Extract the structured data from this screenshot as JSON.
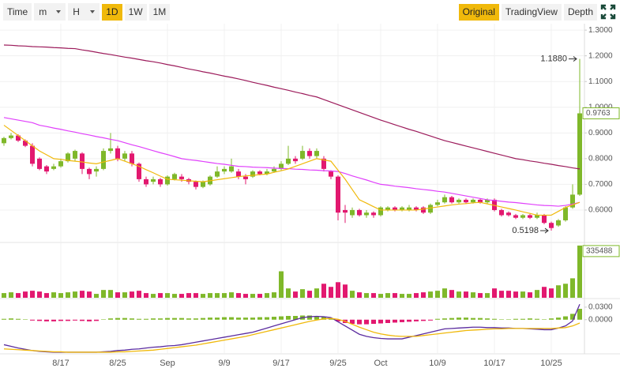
{
  "toolbar": {
    "interval": "Time",
    "dropdowns": [
      "m",
      "H"
    ],
    "periods": [
      "1D",
      "1W",
      "1M"
    ],
    "active_period": "1D",
    "views": [
      "Original",
      "TradingView",
      "Depth"
    ],
    "active_view": "Original"
  },
  "chart_data": [
    {
      "type": "candlestick",
      "categories": [
        null,
        null,
        null,
        null,
        null,
        null,
        null,
        null,
        "8/17",
        null,
        null,
        null,
        null,
        null,
        null,
        null,
        "8/25",
        null,
        null,
        null,
        null,
        null,
        null,
        "Sep",
        null,
        null,
        null,
        null,
        null,
        null,
        null,
        "9/9",
        null,
        null,
        null,
        null,
        null,
        null,
        null,
        "9/17",
        null,
        null,
        null,
        null,
        null,
        null,
        null,
        "9/25",
        null,
        null,
        null,
        null,
        null,
        "Oct",
        null,
        null,
        null,
        null,
        null,
        null,
        null,
        "10/9",
        null,
        null,
        null,
        null,
        null,
        null,
        null,
        "10/17",
        null,
        null,
        null,
        null,
        null,
        null,
        null,
        "10/25",
        null,
        null,
        null,
        null
      ],
      "open": [
        0.86,
        0.88,
        0.89,
        0.87,
        0.85,
        0.8,
        0.77,
        0.76,
        0.77,
        0.79,
        0.8,
        0.82,
        0.76,
        0.75,
        0.76,
        0.83,
        0.84,
        0.8,
        0.82,
        0.78,
        0.72,
        0.71,
        0.72,
        0.7,
        0.72,
        0.73,
        0.72,
        0.71,
        0.69,
        0.7,
        0.73,
        0.75,
        0.75,
        0.75,
        0.73,
        0.73,
        0.75,
        0.74,
        0.75,
        0.76,
        0.78,
        0.8,
        0.8,
        0.83,
        0.81,
        0.8,
        0.75,
        0.73,
        0.6,
        0.58,
        0.6,
        0.58,
        0.59,
        0.58,
        0.6,
        0.61,
        0.6,
        0.6,
        0.61,
        0.61,
        0.59,
        0.62,
        0.63,
        0.65,
        0.63,
        0.64,
        0.63,
        0.64,
        0.63,
        0.64,
        0.6,
        0.59,
        0.58,
        0.57,
        0.58,
        0.57,
        0.58,
        0.55,
        0.54,
        0.56,
        0.61,
        0.66
      ],
      "high": [
        0.885,
        0.9,
        0.895,
        0.875,
        0.86,
        0.805,
        0.775,
        0.78,
        0.8,
        0.825,
        0.835,
        0.825,
        0.765,
        0.77,
        0.84,
        0.9,
        0.85,
        0.83,
        0.83,
        0.785,
        0.73,
        0.73,
        0.725,
        0.735,
        0.745,
        0.74,
        0.725,
        0.715,
        0.715,
        0.735,
        0.77,
        0.77,
        0.8,
        0.76,
        0.74,
        0.755,
        0.755,
        0.76,
        0.77,
        0.79,
        0.85,
        0.81,
        0.85,
        0.84,
        0.84,
        0.81,
        0.755,
        0.735,
        0.62,
        0.61,
        0.605,
        0.6,
        0.595,
        0.615,
        0.615,
        0.615,
        0.615,
        0.62,
        0.615,
        0.615,
        0.625,
        0.64,
        0.66,
        0.655,
        0.645,
        0.645,
        0.645,
        0.645,
        0.645,
        0.645,
        0.605,
        0.595,
        0.585,
        0.585,
        0.585,
        0.59,
        0.585,
        0.555,
        0.565,
        0.615,
        0.7,
        1.188
      ],
      "low": [
        0.85,
        0.875,
        0.865,
        0.845,
        0.77,
        0.755,
        0.74,
        0.755,
        0.765,
        0.785,
        0.79,
        0.74,
        0.72,
        0.73,
        0.755,
        0.82,
        0.79,
        0.79,
        0.77,
        0.71,
        0.69,
        0.7,
        0.69,
        0.695,
        0.715,
        0.71,
        0.7,
        0.68,
        0.685,
        0.695,
        0.725,
        0.74,
        0.745,
        0.72,
        0.7,
        0.725,
        0.735,
        0.735,
        0.745,
        0.755,
        0.775,
        0.78,
        0.795,
        0.8,
        0.8,
        0.75,
        0.72,
        0.56,
        0.55,
        0.57,
        0.575,
        0.57,
        0.57,
        0.575,
        0.595,
        0.595,
        0.595,
        0.595,
        0.595,
        0.585,
        0.585,
        0.615,
        0.625,
        0.625,
        0.625,
        0.625,
        0.625,
        0.625,
        0.625,
        0.595,
        0.575,
        0.575,
        0.565,
        0.565,
        0.565,
        0.565,
        0.545,
        0.5198,
        0.535,
        0.555,
        0.605,
        0.655
      ],
      "close": [
        0.88,
        0.89,
        0.87,
        0.85,
        0.78,
        0.76,
        0.75,
        0.77,
        0.79,
        0.82,
        0.83,
        0.76,
        0.74,
        0.76,
        0.83,
        0.84,
        0.8,
        0.82,
        0.78,
        0.72,
        0.7,
        0.72,
        0.7,
        0.73,
        0.74,
        0.72,
        0.71,
        0.69,
        0.71,
        0.73,
        0.75,
        0.76,
        0.77,
        0.73,
        0.72,
        0.75,
        0.74,
        0.75,
        0.76,
        0.78,
        0.8,
        0.79,
        0.83,
        0.81,
        0.83,
        0.76,
        0.73,
        0.59,
        0.59,
        0.6,
        0.58,
        0.59,
        0.58,
        0.61,
        0.61,
        0.6,
        0.61,
        0.61,
        0.6,
        0.59,
        0.62,
        0.63,
        0.65,
        0.63,
        0.64,
        0.63,
        0.64,
        0.63,
        0.64,
        0.6,
        0.58,
        0.58,
        0.57,
        0.58,
        0.57,
        0.58,
        0.55,
        0.53,
        0.56,
        0.61,
        0.66,
        0.9763
      ],
      "up_color": "#7fb82a",
      "down_color": "#e2186f",
      "lines": [
        {
          "color": "#9c1b5b",
          "values": [
            1.242,
            1.241,
            1.239,
            1.238,
            1.236,
            1.235,
            1.234,
            1.232,
            1.231,
            1.229,
            1.228,
            1.223,
            1.219,
            1.214,
            1.209,
            1.205,
            1.2,
            1.195,
            1.191,
            1.186,
            1.181,
            1.177,
            1.172,
            1.166,
            1.161,
            1.155,
            1.149,
            1.144,
            1.138,
            1.133,
            1.127,
            1.121,
            1.116,
            1.11,
            1.104,
            1.097,
            1.091,
            1.085,
            1.078,
            1.072,
            1.066,
            1.059,
            1.053,
            1.046,
            1.04,
            1.03,
            1.02,
            1.01,
            1.0,
            0.99,
            0.98,
            0.97,
            0.96,
            0.95,
            0.941,
            0.932,
            0.923,
            0.914,
            0.906,
            0.897,
            0.888,
            0.879,
            0.87,
            0.863,
            0.856,
            0.849,
            0.842,
            0.835,
            0.828,
            0.821,
            0.814,
            0.807,
            0.8,
            0.796,
            0.791,
            0.787,
            0.782,
            0.778,
            0.773,
            0.769,
            0.764,
            0.76
          ]
        },
        {
          "color": "#e040fb",
          "values": [
            0.96,
            0.955,
            0.95,
            0.945,
            0.94,
            0.93,
            0.925,
            0.919,
            0.914,
            0.908,
            0.903,
            0.897,
            0.892,
            0.886,
            0.881,
            0.875,
            0.87,
            0.862,
            0.854,
            0.847,
            0.839,
            0.831,
            0.823,
            0.816,
            0.808,
            0.8,
            0.796,
            0.793,
            0.789,
            0.785,
            0.781,
            0.778,
            0.774,
            0.77,
            0.769,
            0.767,
            0.766,
            0.765,
            0.763,
            0.762,
            0.761,
            0.759,
            0.758,
            0.756,
            0.755,
            0.753,
            0.752,
            0.75,
            0.742,
            0.733,
            0.725,
            0.717,
            0.708,
            0.7,
            0.697,
            0.693,
            0.69,
            0.687,
            0.683,
            0.68,
            0.677,
            0.673,
            0.67,
            0.665,
            0.66,
            0.655,
            0.65,
            0.645,
            0.64,
            0.637,
            0.634,
            0.631,
            0.629,
            0.626,
            0.623,
            0.62,
            0.618,
            0.617,
            0.615,
            0.618,
            0.623,
            0.63
          ]
        },
        {
          "color": "#f0b90b",
          "values": [
            0.93,
            0.91,
            0.89,
            0.87,
            0.85,
            0.83,
            0.815,
            0.8,
            0.797,
            0.793,
            0.79,
            0.787,
            0.783,
            0.78,
            0.787,
            0.793,
            0.8,
            0.79,
            0.78,
            0.77,
            0.757,
            0.745,
            0.732,
            0.72,
            0.718,
            0.716,
            0.714,
            0.712,
            0.71,
            0.714,
            0.718,
            0.722,
            0.726,
            0.73,
            0.733,
            0.735,
            0.738,
            0.74,
            0.747,
            0.753,
            0.76,
            0.77,
            0.78,
            0.79,
            0.8,
            0.795,
            0.79,
            0.755,
            0.72,
            0.68,
            0.64,
            0.627,
            0.613,
            0.6,
            0.6,
            0.6,
            0.6,
            0.6,
            0.6,
            0.604,
            0.608,
            0.612,
            0.616,
            0.62,
            0.623,
            0.625,
            0.628,
            0.63,
            0.624,
            0.618,
            0.612,
            0.606,
            0.6,
            0.593,
            0.587,
            0.58,
            0.58,
            0.58,
            0.595,
            0.61,
            0.62,
            0.63
          ]
        }
      ],
      "ylim": [
        0.48,
        1.325
      ],
      "yticks": [
        {
          "value": 1.3,
          "label": "1.3000"
        },
        {
          "value": 1.2,
          "label": "1.2000"
        },
        {
          "value": 1.1,
          "label": "1.1000"
        },
        {
          "value": 1.0,
          "label": "1.0000"
        },
        {
          "value": 0.9,
          "label": "0.9000"
        },
        {
          "value": 0.8,
          "label": "0.8000"
        },
        {
          "value": 0.7,
          "label": "0.7000"
        },
        {
          "value": 0.6,
          "label": "0.6000"
        }
      ],
      "annotations": [
        {
          "value": 1.188,
          "label": "1.1880"
        },
        {
          "value": 0.5198,
          "label": "0.5198"
        }
      ],
      "grid": true
    },
    {
      "type": "bar",
      "values": [
        30000,
        35000,
        30000,
        40000,
        45000,
        40000,
        30000,
        35000,
        30000,
        35000,
        40000,
        45000,
        40000,
        25000,
        50000,
        50000,
        35000,
        35000,
        40000,
        45000,
        30000,
        25000,
        30000,
        30000,
        25000,
        25000,
        30000,
        30000,
        25000,
        30000,
        30000,
        30000,
        35000,
        30000,
        25000,
        25000,
        25000,
        30000,
        35000,
        170000,
        60000,
        40000,
        55000,
        45000,
        60000,
        90000,
        70000,
        100000,
        85000,
        45000,
        35000,
        30000,
        30000,
        25000,
        30000,
        30000,
        25000,
        25000,
        30000,
        35000,
        40000,
        45000,
        60000,
        50000,
        40000,
        40000,
        35000,
        30000,
        30000,
        60000,
        45000,
        45000,
        40000,
        40000,
        35000,
        50000,
        70000,
        60000,
        80000,
        90000,
        125000,
        335488
      ],
      "ylim": [
        0,
        340000
      ]
    },
    {
      "type": "macd",
      "histogram": [
        0.002,
        0.003,
        0.002,
        0.001,
        -0.002,
        -0.003,
        -0.004,
        -0.004,
        -0.003,
        -0.003,
        -0.002,
        -0.003,
        -0.004,
        -0.003,
        0.001,
        0.003,
        0.004,
        0.004,
        0.003,
        0.002,
        0.002,
        0.003,
        0.003,
        0.004,
        0.004,
        0.004,
        0.003,
        0.003,
        0.004,
        0.005,
        0.005,
        0.006,
        0.006,
        0.005,
        0.005,
        0.005,
        0.006,
        0.006,
        0.007,
        0.008,
        0.009,
        0.009,
        0.01,
        0.01,
        0.009,
        0.007,
        0.004,
        -0.004,
        -0.008,
        -0.01,
        -0.011,
        -0.011,
        -0.01,
        -0.009,
        -0.008,
        -0.007,
        -0.006,
        -0.005,
        -0.004,
        -0.003,
        -0.002,
        0.002,
        0.003,
        0.004,
        0.005,
        0.005,
        0.004,
        0.004,
        0.003,
        0.002,
        0.001,
        0.001,
        0.002,
        0.002,
        0.003,
        0.002,
        0.001,
        0.003,
        0.005,
        0.008,
        0.014,
        0.026
      ],
      "series": [
        {
          "color": "#5b2c9f",
          "values": [
            -0.06,
            -0.064,
            -0.068,
            -0.071,
            -0.074,
            -0.076,
            -0.077,
            -0.078,
            -0.078,
            -0.078,
            -0.078,
            -0.078,
            -0.078,
            -0.078,
            -0.077,
            -0.076,
            -0.074,
            -0.073,
            -0.071,
            -0.07,
            -0.068,
            -0.066,
            -0.065,
            -0.063,
            -0.062,
            -0.06,
            -0.057,
            -0.054,
            -0.051,
            -0.048,
            -0.045,
            -0.042,
            -0.039,
            -0.036,
            -0.033,
            -0.03,
            -0.025,
            -0.02,
            -0.015,
            -0.01,
            -0.005,
            0.0,
            0.005,
            0.007,
            0.008,
            0.007,
            0.005,
            -0.005,
            -0.015,
            -0.025,
            -0.035,
            -0.04,
            -0.043,
            -0.045,
            -0.046,
            -0.046,
            -0.046,
            -0.042,
            -0.038,
            -0.034,
            -0.03,
            -0.026,
            -0.022,
            -0.021,
            -0.02,
            -0.019,
            -0.018,
            -0.018,
            -0.019,
            -0.019,
            -0.02,
            -0.02,
            -0.021,
            -0.021,
            -0.022,
            -0.023,
            -0.024,
            -0.024,
            -0.02,
            -0.015,
            -0.003,
            0.037
          ]
        },
        {
          "color": "#f0b90b",
          "values": [
            -0.07,
            -0.071,
            -0.072,
            -0.073,
            -0.074,
            -0.075,
            -0.076,
            -0.077,
            -0.077,
            -0.078,
            -0.078,
            -0.078,
            -0.078,
            -0.078,
            -0.078,
            -0.078,
            -0.077,
            -0.077,
            -0.076,
            -0.075,
            -0.074,
            -0.073,
            -0.071,
            -0.069,
            -0.067,
            -0.065,
            -0.063,
            -0.061,
            -0.058,
            -0.055,
            -0.052,
            -0.049,
            -0.046,
            -0.043,
            -0.04,
            -0.036,
            -0.032,
            -0.028,
            -0.024,
            -0.02,
            -0.016,
            -0.012,
            -0.008,
            -0.004,
            -0.001,
            0.002,
            0.003,
            0.001,
            -0.004,
            -0.011,
            -0.018,
            -0.024,
            -0.03,
            -0.034,
            -0.037,
            -0.039,
            -0.04,
            -0.04,
            -0.04,
            -0.038,
            -0.036,
            -0.034,
            -0.032,
            -0.03,
            -0.028,
            -0.026,
            -0.025,
            -0.024,
            -0.023,
            -0.022,
            -0.022,
            -0.021,
            -0.021,
            -0.021,
            -0.021,
            -0.021,
            -0.021,
            -0.021,
            -0.02,
            -0.019,
            -0.015,
            -0.008
          ]
        }
      ],
      "ylim": [
        -0.08,
        0.045
      ],
      "yticks": [
        {
          "value": 0.03,
          "label": "0.0300"
        },
        {
          "value": 0,
          "label": "0.0000"
        }
      ]
    }
  ]
}
